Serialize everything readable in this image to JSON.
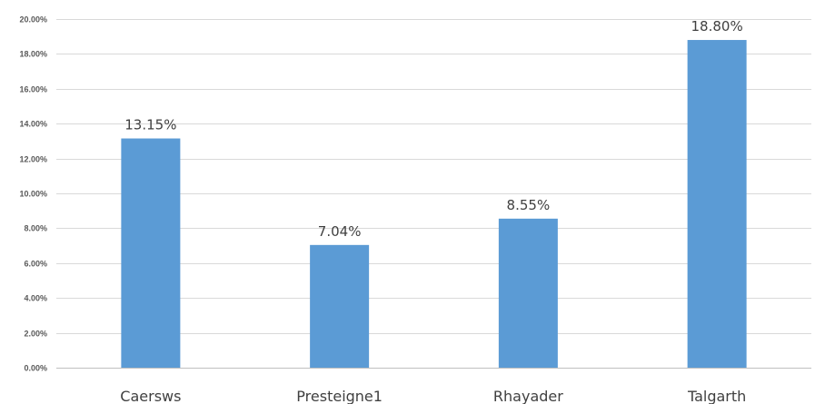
{
  "chart_data": {
    "type": "bar",
    "title": "",
    "xlabel": "",
    "ylabel": "",
    "categories": [
      "Caersws",
      "Presteigne1",
      "Rhayader",
      "Talgarth"
    ],
    "values": [
      13.15,
      7.04,
      8.55,
      18.8
    ],
    "data_labels": [
      "13.15%",
      "7.04%",
      "8.55%",
      "18.80%"
    ],
    "ylim": [
      0,
      20
    ],
    "yticks": [
      0,
      2,
      4,
      6,
      8,
      10,
      12,
      14,
      16,
      18,
      20
    ],
    "ytick_labels": [
      "0.00%",
      "2.00%",
      "4.00%",
      "6.00%",
      "8.00%",
      "10.00%",
      "12.00%",
      "14.00%",
      "16.00%",
      "18.00%",
      "20.00%"
    ],
    "grid": true,
    "legend": "none",
    "colors": {
      "bar": "#5b9bd5",
      "grid": "#d9d9d9",
      "text": "#404040"
    }
  }
}
